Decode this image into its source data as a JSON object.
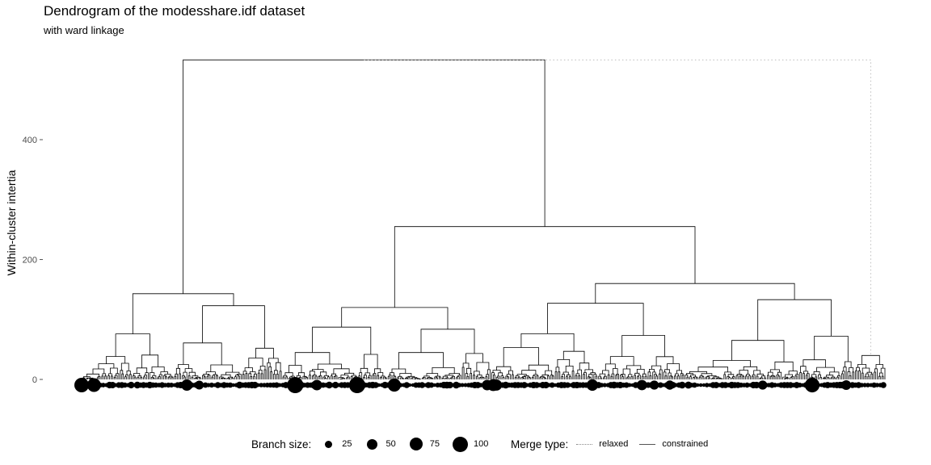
{
  "title": "Dendrogram of the modesshare.idf dataset",
  "subtitle": "with ward linkage",
  "chart_data": {
    "type": "dendrogram",
    "ylabel": "Within-cluster intertia",
    "xlabel": "",
    "yticks": [
      0,
      200,
      400
    ],
    "ylim": [
      -12,
      540
    ],
    "leaf_count": 520,
    "merges": [
      {
        "name": "root",
        "height": 533,
        "type": "constrained"
      },
      {
        "name": "relaxed-merge",
        "height": 533,
        "type": "relaxed"
      },
      {
        "name": "right-cluster",
        "height": 255,
        "type": "constrained"
      },
      {
        "name": "left-cluster",
        "height": 143,
        "type": "constrained"
      },
      {
        "name": "right-right-cluster",
        "height": 160,
        "type": "constrained"
      },
      {
        "name": "right-right-b",
        "height": 133,
        "type": "constrained"
      },
      {
        "name": "right-right-a",
        "height": 127,
        "type": "constrained"
      },
      {
        "name": "right-left-cluster",
        "height": 120,
        "type": "constrained"
      },
      {
        "name": "left-b",
        "height": 123,
        "type": "constrained"
      },
      {
        "name": "left-a",
        "height": 76,
        "type": "constrained"
      }
    ],
    "legend": {
      "size_title": "Branch size:",
      "sizes": [
        {
          "label": "25",
          "value": 25
        },
        {
          "label": "50",
          "value": 50
        },
        {
          "label": "75",
          "value": 75
        },
        {
          "label": "100",
          "value": 100
        }
      ],
      "merge_title": "Merge type:",
      "merge_types": [
        {
          "label": "relaxed",
          "style": "dotted"
        },
        {
          "label": "constrained",
          "style": "solid"
        }
      ],
      "position": "bottom"
    },
    "colors": {
      "line": "#000000",
      "relaxed": "#b0b0b0",
      "point": "#000000",
      "axis": "#555555"
    }
  }
}
